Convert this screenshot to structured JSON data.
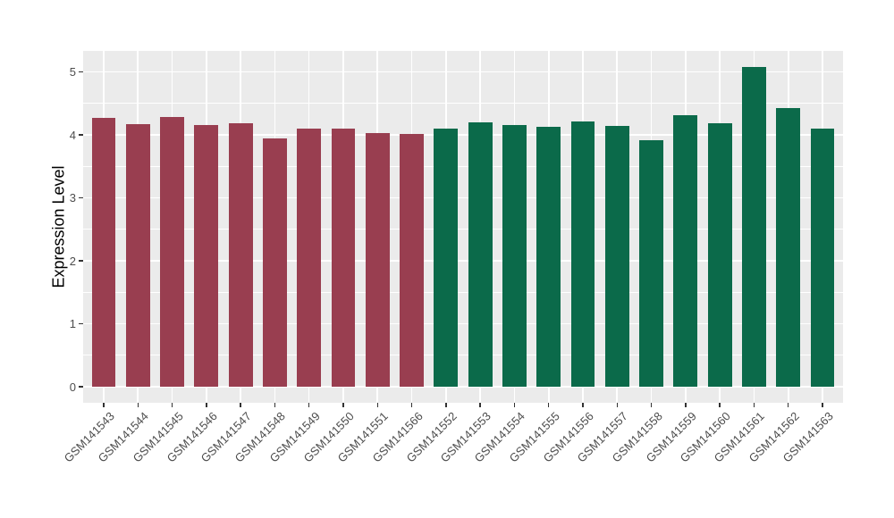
{
  "figure": {
    "background_color": "#FFFFFF"
  },
  "chart_data": {
    "type": "bar",
    "title": "",
    "xlabel": "",
    "ylabel": "Expression Level",
    "categories": [
      "GSM141543",
      "GSM141544",
      "GSM141545",
      "GSM141546",
      "GSM141547",
      "GSM141548",
      "GSM141549",
      "GSM141550",
      "GSM141551",
      "GSM141566",
      "GSM141552",
      "GSM141553",
      "GSM141554",
      "GSM141555",
      "GSM141556",
      "GSM141557",
      "GSM141558",
      "GSM141559",
      "GSM141560",
      "GSM141561",
      "GSM141562",
      "GSM141563"
    ],
    "values": [
      4.27,
      4.17,
      4.29,
      4.15,
      4.19,
      3.95,
      4.1,
      4.1,
      4.03,
      4.02,
      4.1,
      4.2,
      4.15,
      4.13,
      4.22,
      4.14,
      3.91,
      4.31,
      4.18,
      5.08,
      4.43,
      4.1
    ],
    "bar_group": [
      0,
      0,
      0,
      0,
      0,
      0,
      0,
      0,
      0,
      0,
      1,
      1,
      1,
      1,
      1,
      1,
      1,
      1,
      1,
      1,
      1,
      1
    ],
    "group_colors": [
      "#993E50",
      "#0B6A4A"
    ],
    "yticks": [
      0,
      1,
      2,
      3,
      4,
      5
    ],
    "ylim": [
      0,
      5.33
    ],
    "panel_background": "#EBEBEB",
    "grid": "white major and minor gridlines on grey panel",
    "legend_position": "none",
    "x_tick_rotation_deg": 45
  }
}
